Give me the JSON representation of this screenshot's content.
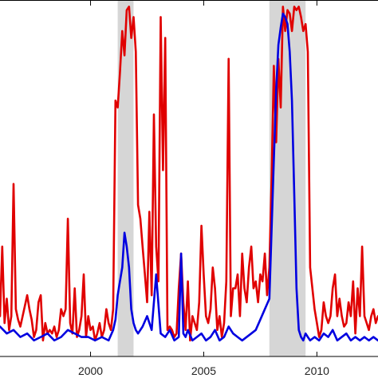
{
  "chart_data": {
    "type": "line",
    "title": "",
    "xlabel": "",
    "ylabel": "",
    "xlim": [
      1996.0,
      2012.7
    ],
    "ylim": [
      0,
      100
    ],
    "grid": false,
    "x_ticks": [
      {
        "value": 2000,
        "label": "2000"
      },
      {
        "value": 2005,
        "label": "2005"
      },
      {
        "value": 2010,
        "label": "2010"
      }
    ],
    "shaded_periods": [
      {
        "start": 2001.2,
        "end": 2001.9
      },
      {
        "start": 2007.9,
        "end": 2009.5
      }
    ],
    "series": [
      {
        "color": "#e00000",
        "x": [
          1996.0,
          1996.1,
          1996.2,
          1996.3,
          1996.4,
          1996.5,
          1996.6,
          1996.7,
          1996.8,
          1996.9,
          1997.0,
          1997.2,
          1997.3,
          1997.4,
          1997.5,
          1997.6,
          1997.7,
          1997.8,
          1997.9,
          1998.0,
          1998.1,
          1998.2,
          1998.3,
          1998.4,
          1998.5,
          1998.6,
          1998.7,
          1998.8,
          1998.9,
          1999.0,
          1999.1,
          1999.2,
          1999.3,
          1999.4,
          1999.5,
          1999.6,
          1999.7,
          1999.8,
          1999.9,
          2000.0,
          2000.1,
          2000.2,
          2000.3,
          2000.4,
          2000.5,
          2000.6,
          2000.7,
          2000.8,
          2000.9,
          2001.0,
          2001.1,
          2001.2,
          2001.3,
          2001.4,
          2001.5,
          2001.6,
          2001.7,
          2001.8,
          2001.9,
          2002.0,
          2002.1,
          2002.2,
          2002.3,
          2002.4,
          2002.5,
          2002.6,
          2002.7,
          2002.8,
          2002.9,
          2003.0,
          2003.1,
          2003.2,
          2003.3,
          2003.4,
          2003.5,
          2003.6,
          2003.7,
          2003.8,
          2003.9,
          2004.0,
          2004.1,
          2004.2,
          2004.3,
          2004.4,
          2004.5,
          2004.6,
          2004.7,
          2004.8,
          2004.9,
          2005.0,
          2005.1,
          2005.2,
          2005.3,
          2005.4,
          2005.5,
          2005.6,
          2005.7,
          2005.8,
          2005.9,
          2006.0,
          2006.1,
          2006.2,
          2006.3,
          2006.4,
          2006.5,
          2006.6,
          2006.7,
          2006.8,
          2006.9,
          2007.0,
          2007.1,
          2007.2,
          2007.3,
          2007.4,
          2007.5,
          2007.6,
          2007.7,
          2007.8,
          2007.9,
          2008.0,
          2008.1,
          2008.2,
          2008.3,
          2008.4,
          2008.5,
          2008.6,
          2008.7,
          2008.8,
          2008.9,
          2009.0,
          2009.1,
          2009.2,
          2009.3,
          2009.4,
          2009.5,
          2009.6,
          2009.7,
          2009.8,
          2009.9,
          2010.0,
          2010.1,
          2010.2,
          2010.3,
          2010.4,
          2010.5,
          2010.6,
          2010.7,
          2010.8,
          2010.9,
          2011.0,
          2011.1,
          2011.2,
          2011.3,
          2011.4,
          2011.5,
          2011.6,
          2011.7,
          2011.8,
          2011.9,
          2012.0,
          2012.1,
          2012.2,
          2012.3,
          2012.4,
          2012.5,
          2012.6,
          2012.7
        ],
        "y": [
          10,
          30,
          8,
          15,
          6,
          10,
          48,
          12,
          9,
          7,
          10,
          16,
          12,
          9,
          4,
          6,
          14,
          16,
          3,
          8,
          5,
          6,
          5,
          7,
          4,
          6,
          12,
          10,
          12,
          38,
          8,
          5,
          18,
          4,
          6,
          10,
          22,
          4,
          10,
          6,
          7,
          3,
          5,
          8,
          4,
          6,
          12,
          8,
          6,
          12,
          72,
          70,
          80,
          92,
          85,
          98,
          99,
          90,
          96,
          86,
          42,
          38,
          30,
          22,
          14,
          40,
          16,
          68,
          30,
          20,
          96,
          52,
          90,
          6,
          7,
          6,
          4,
          5,
          18,
          28,
          14,
          6,
          20,
          3,
          10,
          8,
          6,
          14,
          36,
          22,
          10,
          8,
          12,
          24,
          18,
          6,
          10,
          4,
          8,
          20,
          84,
          10,
          18,
          18,
          22,
          10,
          28,
          18,
          14,
          24,
          30,
          18,
          20,
          14,
          22,
          20,
          28,
          16,
          24,
          50,
          82,
          60,
          84,
          70,
          99,
          92,
          98,
          97,
          92,
          99,
          98,
          99,
          96,
          92,
          94,
          86,
          24,
          18,
          12,
          8,
          4,
          6,
          14,
          10,
          8,
          10,
          18,
          22,
          10,
          15,
          10,
          7,
          8,
          14,
          10,
          20,
          5,
          18,
          10,
          30,
          10,
          8,
          6,
          10,
          12,
          8,
          10
        ]
      },
      {
        "color": "#0000e0",
        "x": [
          1996.0,
          1996.3,
          1996.6,
          1996.9,
          1997.2,
          1997.5,
          1997.8,
          1998.1,
          1998.4,
          1998.7,
          1999.0,
          1999.3,
          1999.6,
          1999.9,
          2000.2,
          2000.5,
          2000.8,
          2001.0,
          2001.1,
          2001.2,
          2001.3,
          2001.4,
          2001.5,
          2001.6,
          2001.7,
          2001.8,
          2001.9,
          2002.0,
          2002.1,
          2002.3,
          2002.5,
          2002.7,
          2002.9,
          2003.1,
          2003.3,
          2003.5,
          2003.7,
          2003.9,
          2004.0,
          2004.1,
          2004.2,
          2004.3,
          2004.5,
          2004.7,
          2004.9,
          2005.1,
          2005.3,
          2005.5,
          2005.7,
          2005.9,
          2006.1,
          2006.3,
          2006.5,
          2006.7,
          2006.9,
          2007.1,
          2007.3,
          2007.5,
          2007.7,
          2007.9,
          2008.0,
          2008.1,
          2008.2,
          2008.3,
          2008.4,
          2008.5,
          2008.6,
          2008.7,
          2008.8,
          2008.9,
          2009.0,
          2009.1,
          2009.2,
          2009.3,
          2009.4,
          2009.5,
          2009.6,
          2009.7,
          2009.9,
          2010.1,
          2010.3,
          2010.5,
          2010.7,
          2010.9,
          2011.1,
          2011.3,
          2011.5,
          2011.7,
          2011.9,
          2012.1,
          2012.3,
          2012.5,
          2012.7
        ],
        "y": [
          7,
          5,
          6,
          4,
          5,
          3,
          4,
          5,
          3,
          4,
          6,
          5,
          4,
          4,
          3,
          4,
          3,
          6,
          9,
          16,
          20,
          24,
          34,
          30,
          24,
          12,
          8,
          6,
          5,
          7,
          10,
          6,
          22,
          5,
          4,
          6,
          3,
          4,
          28,
          5,
          4,
          6,
          3,
          4,
          5,
          3,
          4,
          6,
          3,
          4,
          7,
          5,
          4,
          3,
          4,
          5,
          6,
          9,
          12,
          15,
          35,
          55,
          75,
          88,
          93,
          97,
          96,
          94,
          86,
          72,
          45,
          18,
          6,
          4,
          3,
          5,
          4,
          3,
          4,
          3,
          5,
          4,
          6,
          3,
          4,
          5,
          3,
          4,
          3,
          4,
          3,
          4,
          3
        ]
      }
    ]
  }
}
